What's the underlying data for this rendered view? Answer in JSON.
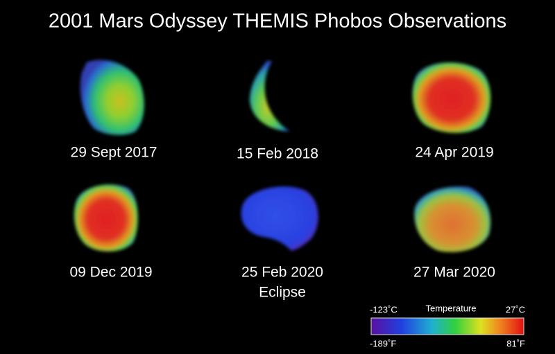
{
  "title": "2001 Mars Odyssey THEMIS Phobos Observations",
  "panels": [
    {
      "date": "29 Sept 2017"
    },
    {
      "date": "15 Feb 2018"
    },
    {
      "date": "24 Apr 2019"
    },
    {
      "date": "09 Dec 2019"
    },
    {
      "date": "25 Feb 2020",
      "note": "Eclipse"
    },
    {
      "date": "27 Mar 2020"
    }
  ],
  "colorbar": {
    "label": "Temperature",
    "min_c": "-123˚C",
    "max_c": "27˚C",
    "min_f": "-189˚F",
    "max_f": "81˚F"
  }
}
